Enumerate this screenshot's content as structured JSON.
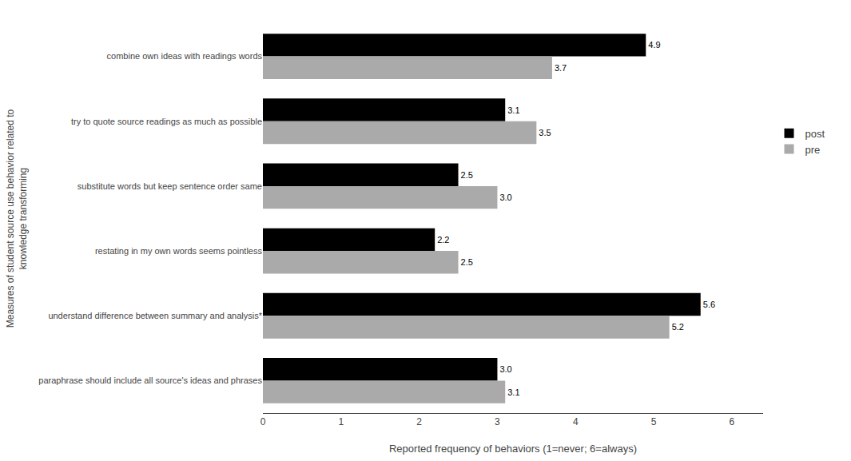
{
  "chart_data": {
    "type": "bar",
    "orientation": "horizontal",
    "categories": [
      "combine own ideas with readings words",
      "try to quote source readings as much as possible",
      "substitute words but keep sentence order same",
      "restating in my own words seems pointless",
      "understand difference between summary and analysis*",
      "paraphrase should include all source's ideas and phrases"
    ],
    "series": [
      {
        "name": "post",
        "color": "#000000",
        "values": [
          4.9,
          3.1,
          2.5,
          2.2,
          5.6,
          3.0
        ],
        "value_labels": [
          "4.9",
          "3.1",
          "2.5",
          "2.2",
          "5.6",
          "3.0"
        ]
      },
      {
        "name": "pre",
        "color": "#aaaaaa",
        "values": [
          3.7,
          3.5,
          3.0,
          2.5,
          5.2,
          3.1
        ],
        "value_labels": [
          "3.7",
          "3.5",
          "3.0",
          "2.5",
          "5.2",
          "3.1"
        ]
      }
    ],
    "xlabel": "Reported frequency of behaviors (1=never; 6=always)",
    "ylabel": "Measures of student source use behavior related to\nknowledge transforming",
    "xlim": [
      0,
      6.4
    ],
    "xticks": [
      0,
      1,
      2,
      3,
      4,
      5,
      6
    ],
    "grid": false,
    "legend": "right",
    "data_labels": true
  }
}
